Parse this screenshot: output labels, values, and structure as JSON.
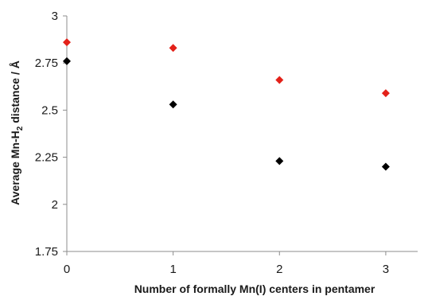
{
  "chart_data": {
    "type": "scatter",
    "title": "",
    "xlabel": "Number of formally Mn(I) centers in pentamer",
    "ylabel_parts": [
      "Average Mn-H",
      "2",
      " distance / Å"
    ],
    "xlim": [
      0,
      3.3
    ],
    "ylim": [
      1.75,
      3
    ],
    "x_ticks": [
      0,
      1,
      2,
      3
    ],
    "x_tick_labels": [
      "0",
      "1",
      "2",
      "3"
    ],
    "y_ticks": [
      1.75,
      2,
      2.25,
      2.5,
      2.75,
      3
    ],
    "y_tick_labels": [
      "1.75",
      "2",
      "2.25",
      "2.5",
      "2.75",
      "3"
    ],
    "grid": false,
    "legend": "none",
    "marker": "diamond",
    "series": [
      {
        "color": "#e32119",
        "x": [
          0,
          1,
          2,
          3
        ],
        "y": [
          2.86,
          2.83,
          2.66,
          2.59
        ]
      },
      {
        "color": "#000000",
        "x": [
          0,
          1,
          2,
          3
        ],
        "y": [
          2.76,
          2.53,
          2.23,
          2.2
        ]
      }
    ]
  }
}
